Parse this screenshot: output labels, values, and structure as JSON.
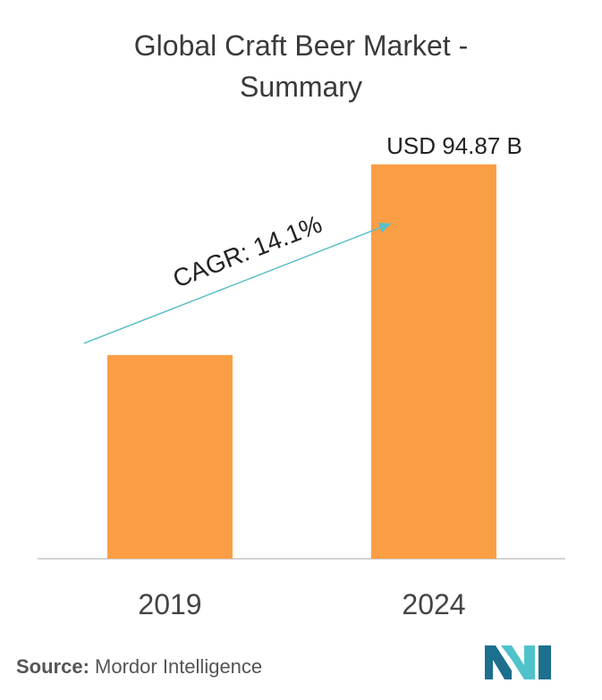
{
  "title_line1": "Global Craft Beer Market -",
  "title_line2": "Summary",
  "chart_data": {
    "type": "bar",
    "categories": [
      "2019",
      "2024"
    ],
    "values": [
      49.0,
      94.87
    ],
    "data_labels": [
      "",
      "USD 94.87 B"
    ],
    "annotation": "CAGR: 14.1%",
    "bar_color": "#fa9e45",
    "arrow_color": "#5bbfc6",
    "ylim": [
      0,
      100
    ],
    "grid": false
  },
  "source": {
    "label": "Source:",
    "text": "Mordor Intelligence"
  },
  "colors": {
    "logo_dark": "#1d6f8e",
    "logo_light": "#4fc3c9"
  }
}
